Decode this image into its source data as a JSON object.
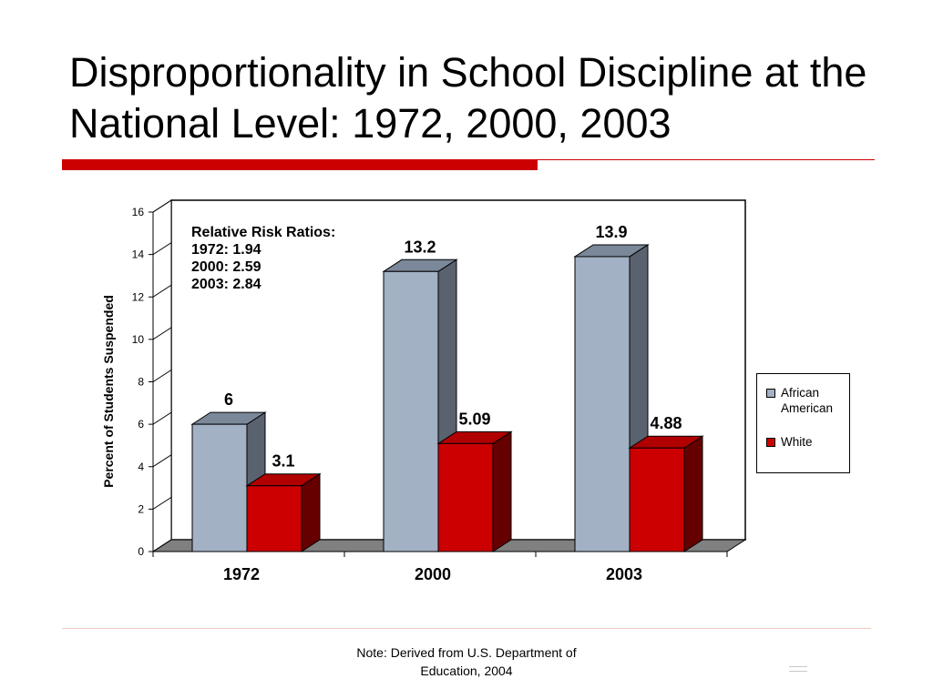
{
  "slide": {
    "title": "Disproportionality in School Discipline at the National Level: 1972, 2000, 2003",
    "footnote": "Note: Derived from U.S. Department of Education, 2004"
  },
  "colors": {
    "accent": "#cc0000",
    "african_american": "#a2b1c4",
    "white": "#cc0000",
    "floor": "#808080"
  },
  "chart_data": {
    "type": "bar",
    "categories": [
      "1972",
      "2000",
      "2003"
    ],
    "series": [
      {
        "name": "African American",
        "values": [
          6,
          13.2,
          13.9
        ],
        "labels": [
          "6",
          "13.2",
          "13.9"
        ]
      },
      {
        "name": "White",
        "values": [
          3.1,
          5.09,
          4.88
        ],
        "labels": [
          "3.1",
          "5.09",
          "4.88"
        ]
      }
    ],
    "xlabel": "",
    "ylabel": "Percent of Students Suspended",
    "ylim": [
      0,
      16
    ],
    "yticks": [
      "0",
      "2",
      "4",
      "6",
      "8",
      "10",
      "12",
      "14",
      "16"
    ],
    "legend_position": "right",
    "annotation": {
      "heading": "Relative Risk Ratios:",
      "lines": [
        "1972: 1.94",
        "2000: 2.59",
        "2003: 2.84"
      ]
    }
  }
}
